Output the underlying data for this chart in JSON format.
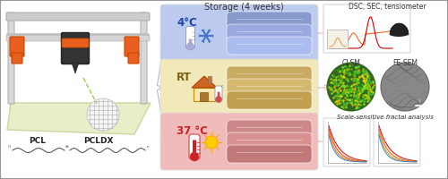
{
  "background_color": "#ffffff",
  "border_color": "#999999",
  "storage_label": "Storage (4 weeks)",
  "temps": [
    "4°C",
    "RT",
    "37 °C"
  ],
  "temp_box_colors": [
    "#b8c8ee",
    "#f2e8b8",
    "#f0b8b8"
  ],
  "temp_text_colors": [
    "#2244aa",
    "#7a6010",
    "#cc2222"
  ],
  "rod_colors_cold": [
    "#8899cc",
    "#9aaae0",
    "#aabbee"
  ],
  "rod_colors_rt": [
    "#c8aa60",
    "#d4b870",
    "#c0a050"
  ],
  "rod_colors_warm": [
    "#cc8888",
    "#d89090",
    "#c07878"
  ],
  "pcl_label": "PCL",
  "pcldx_label": "PCLDX",
  "right_label_top": "DSC, SEC, tensiometer",
  "right_label_mid1": "CLSM",
  "right_label_mid2": "FE-SEM",
  "right_label_bot": "Scale-sensitive fractal analysis",
  "dsc_curve_colors": [
    "#ee6622",
    "#cc0000"
  ],
  "fractal_colors_left": [
    "#cc2222",
    "#ee4422",
    "#ee8800",
    "#4488cc"
  ],
  "fractal_colors_right": [
    "#cc2222",
    "#ee6622",
    "#ddaa22",
    "#4488cc"
  ],
  "arrow_gray": "#bbbbbb",
  "arrow_pink": "#e8a0a0",
  "bed_color": "#e8eec8",
  "bed_edge": "#c8d8a0"
}
